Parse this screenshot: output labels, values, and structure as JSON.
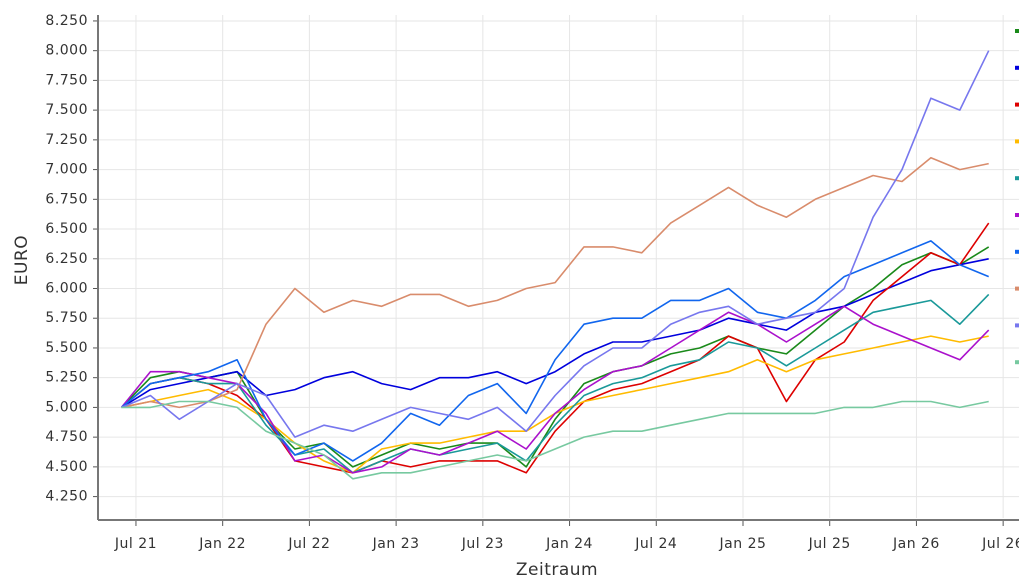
{
  "chart_data": {
    "type": "line",
    "y_label": "EURO",
    "x_label": "Zeitraum",
    "x": [
      "2021-06",
      "2021-08",
      "2021-10",
      "2021-12",
      "2022-02",
      "2022-04",
      "2022-06",
      "2022-08",
      "2022-10",
      "2022-12",
      "2023-02",
      "2023-04",
      "2023-06",
      "2023-08",
      "2023-10",
      "2023-12",
      "2024-02",
      "2024-04",
      "2024-06",
      "2024-08",
      "2024-10",
      "2024-12",
      "2025-02",
      "2025-04",
      "2025-06",
      "2025-08",
      "2025-10",
      "2025-12",
      "2026-02",
      "2026-04",
      "2026-06"
    ],
    "series": [
      {
        "color": "#1a8a1a",
        "values": [
          5000,
          5250,
          5300,
          5250,
          5300,
          4900,
          4650,
          4700,
          4500,
          4600,
          4700,
          4650,
          4700,
          4700,
          4500,
          4900,
          5200,
          5300,
          5350,
          5450,
          5500,
          5600,
          5500,
          5450,
          5650,
          5850,
          6000,
          6200,
          6300,
          6200,
          6350
        ]
      },
      {
        "color": "#0000dd",
        "values": [
          5000,
          5150,
          5200,
          5250,
          5300,
          5100,
          5150,
          5250,
          5300,
          5200,
          5150,
          5250,
          5250,
          5300,
          5200,
          5300,
          5450,
          5550,
          5550,
          5600,
          5650,
          5750,
          5700,
          5650,
          5800,
          5850,
          5950,
          6050,
          6150,
          6200,
          6250
        ]
      },
      {
        "color": "#dd0000",
        "values": [
          5000,
          5200,
          5250,
          5200,
          5100,
          4900,
          4550,
          4500,
          4450,
          4550,
          4500,
          4550,
          4550,
          4550,
          4450,
          4800,
          5050,
          5150,
          5200,
          5300,
          5400,
          5600,
          5500,
          5050,
          5400,
          5550,
          5900,
          6100,
          6300,
          6200,
          6550
        ]
      },
      {
        "color": "#ffbb00",
        "values": [
          5000,
          5050,
          5100,
          5150,
          5050,
          4900,
          4700,
          4550,
          4450,
          4650,
          4700,
          4700,
          4750,
          4800,
          4800,
          4950,
          5050,
          5100,
          5150,
          5200,
          5250,
          5300,
          5400,
          5300,
          5400,
          5450,
          5500,
          5550,
          5600,
          5550,
          5600
        ]
      },
      {
        "color": "#1a9999",
        "values": [
          5000,
          5200,
          5250,
          5200,
          5200,
          4850,
          4600,
          4650,
          4450,
          4550,
          4650,
          4600,
          4650,
          4700,
          4550,
          4850,
          5100,
          5200,
          5250,
          5350,
          5400,
          5550,
          5500,
          5350,
          5500,
          5650,
          5800,
          5850,
          5900,
          5700,
          5950
        ]
      },
      {
        "color": "#aa11cc",
        "values": [
          5000,
          5300,
          5300,
          5250,
          5200,
          4950,
          4550,
          4600,
          4450,
          4500,
          4650,
          4600,
          4700,
          4800,
          4650,
          4950,
          5150,
          5300,
          5350,
          5500,
          5650,
          5800,
          5700,
          5550,
          5700,
          5850,
          5700,
          5600,
          5500,
          5400,
          5650
        ]
      },
      {
        "color": "#1166ee",
        "values": [
          5000,
          5200,
          5250,
          5300,
          5400,
          4900,
          4600,
          4700,
          4550,
          4700,
          4950,
          4850,
          5100,
          5200,
          4950,
          5400,
          5700,
          5750,
          5750,
          5900,
          5900,
          6000,
          5800,
          5750,
          5900,
          6100,
          6200,
          6300,
          6400,
          6200,
          6100
        ]
      },
      {
        "color": "#d98c6c",
        "values": [
          5000,
          5050,
          5000,
          5050,
          5150,
          5700,
          6000,
          5800,
          5900,
          5850,
          5950,
          5950,
          5850,
          5900,
          6000,
          6050,
          6350,
          6350,
          6300,
          6550,
          6700,
          6850,
          6700,
          6600,
          6750,
          6850,
          6950,
          6900,
          7100,
          7000,
          7050
        ]
      },
      {
        "color": "#7777ee",
        "values": [
          5000,
          5100,
          4900,
          5050,
          5200,
          5100,
          4750,
          4850,
          4800,
          4900,
          5000,
          4950,
          4900,
          5000,
          4800,
          5100,
          5350,
          5500,
          5500,
          5700,
          5800,
          5850,
          5700,
          5750,
          5800,
          6000,
          6600,
          7000,
          7600,
          7500,
          8000
        ]
      },
      {
        "color": "#77c9a0",
        "values": [
          5000,
          5000,
          5050,
          5050,
          5000,
          4800,
          4700,
          4600,
          4400,
          4450,
          4450,
          4500,
          4550,
          4600,
          4550,
          4650,
          4750,
          4800,
          4800,
          4850,
          4900,
          4950,
          4950,
          4950,
          4950,
          5000,
          5000,
          5050,
          5050,
          5000,
          5050
        ]
      }
    ],
    "xlim": [
      "2021-04",
      "2026-08"
    ],
    "xticks": [
      {
        "value": "2021-07",
        "label": "Jul 21"
      },
      {
        "value": "2022-01",
        "label": "Jan 22"
      },
      {
        "value": "2022-07",
        "label": "Jul 22"
      },
      {
        "value": "2023-01",
        "label": "Jan 23"
      },
      {
        "value": "2023-07",
        "label": "Jul 23"
      },
      {
        "value": "2024-01",
        "label": "Jan 24"
      },
      {
        "value": "2024-07",
        "label": "Jul 24"
      },
      {
        "value": "2025-01",
        "label": "Jan 25"
      },
      {
        "value": "2025-07",
        "label": "Jul 25"
      },
      {
        "value": "2026-01",
        "label": "Jan 26"
      },
      {
        "value": "2026-07",
        "label": "Jul 26"
      }
    ],
    "ylim": [
      4070,
      8300
    ],
    "yticks": [
      {
        "value": 4250,
        "label": "4.250"
      },
      {
        "value": 4500,
        "label": "4.500"
      },
      {
        "value": 4750,
        "label": "4.750"
      },
      {
        "value": 5000,
        "label": "5.000"
      },
      {
        "value": 5250,
        "label": "5.250"
      },
      {
        "value": 5500,
        "label": "5.500"
      },
      {
        "value": 5750,
        "label": "5.750"
      },
      {
        "value": 6000,
        "label": "6.000"
      },
      {
        "value": 6250,
        "label": "6.250"
      },
      {
        "value": 6500,
        "label": "6.500"
      },
      {
        "value": 6750,
        "label": "6.750"
      },
      {
        "value": 7000,
        "label": "7.000"
      },
      {
        "value": 7250,
        "label": "7.250"
      },
      {
        "value": 7500,
        "label": "7.500"
      },
      {
        "value": 7750,
        "label": "7.750"
      },
      {
        "value": 8000,
        "label": "8.000"
      },
      {
        "value": 8250,
        "label": "8.250"
      }
    ],
    "grid": true
  }
}
